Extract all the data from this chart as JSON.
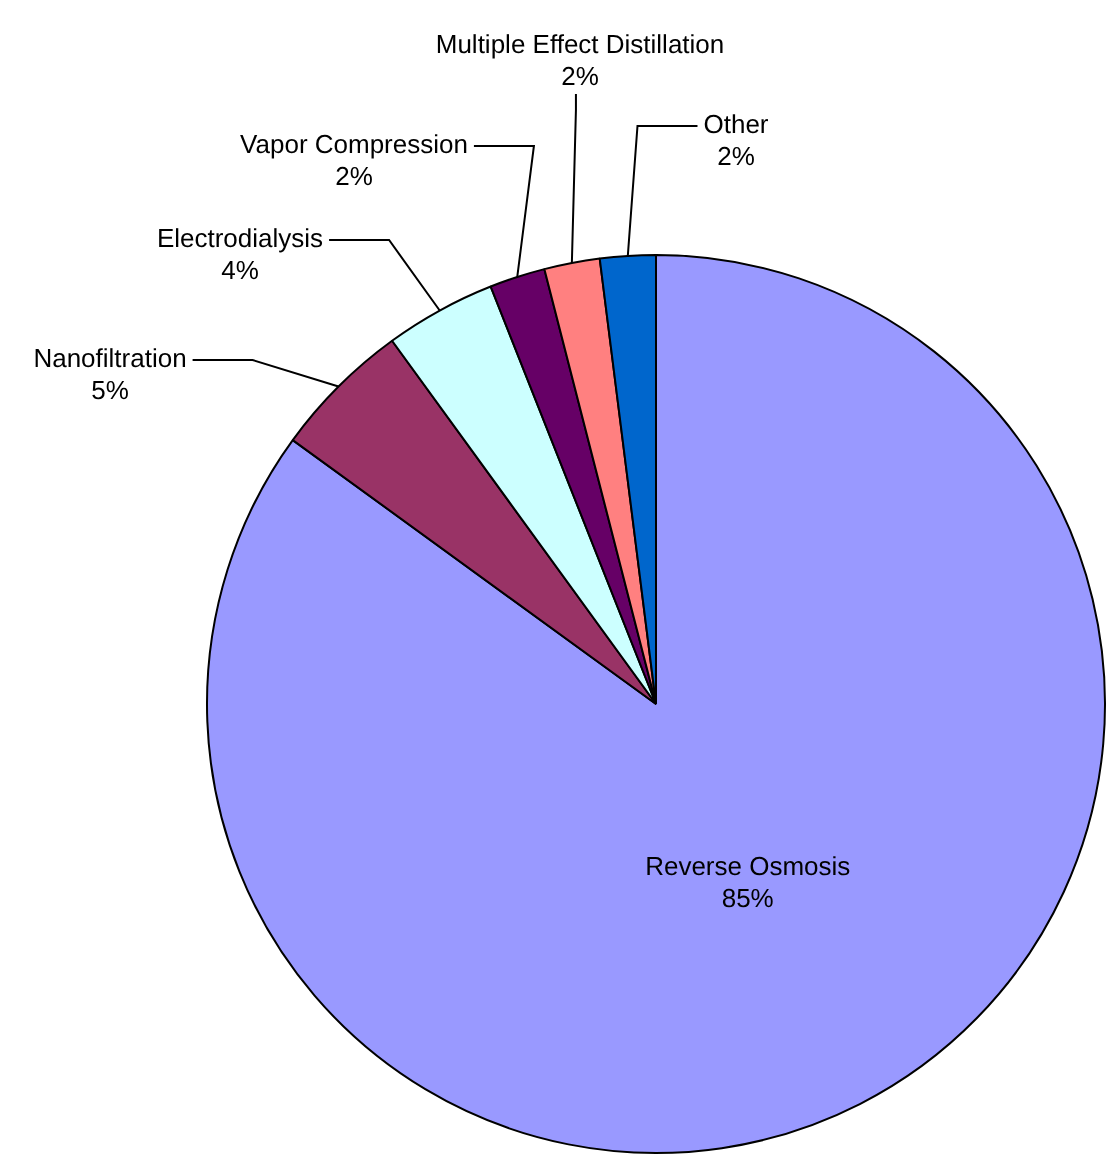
{
  "chart_data": {
    "type": "pie",
    "categories": [
      "Reverse Osmosis",
      "Nanofiltration",
      "Electrodialysis",
      "Vapor Compression",
      "Multiple Effect Distillation",
      "Other"
    ],
    "values": [
      85,
      5,
      4,
      2,
      2,
      2
    ],
    "colors": [
      "#9999ff",
      "#993366",
      "#ccffff",
      "#660066",
      "#ff8080",
      "#0066cc"
    ],
    "value_labels": [
      "85%",
      "5%",
      "4%",
      "2%",
      "2%",
      "2%"
    ],
    "legend": false
  }
}
